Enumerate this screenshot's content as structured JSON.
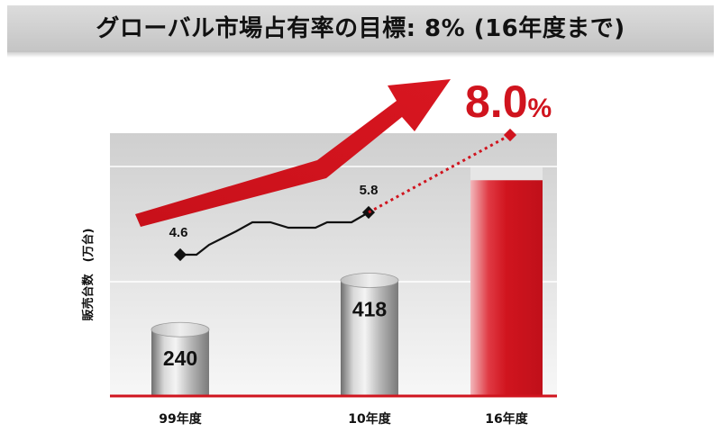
{
  "title": "グローバル市場占有率の目標: 8% (16年度まで)",
  "colors": {
    "accent_red": "#d0141e",
    "dark_line": "#111111",
    "grey_cylinder": "#9a9a9a"
  },
  "chart_data": {
    "type": "bar",
    "title": "グローバル市場占有率の目標: 8% (16年度まで)",
    "categories": [
      "99年度",
      "10年度",
      "16年度"
    ],
    "ylabel": "販売台数　(万台)",
    "ylim": [
      0,
      950
    ],
    "grid": true,
    "series": [
      {
        "values": [
          240,
          418,
          null
        ]
      }
    ],
    "target_bar": {
      "category": "16年度",
      "value": 780,
      "color": "#d0141e"
    },
    "share_line": {
      "unit": "%",
      "points": [
        {
          "label": "4.6",
          "value": 4.6
        },
        {
          "label": "5.8",
          "value": 5.8
        }
      ],
      "target": {
        "label": "8.0",
        "unit": "%",
        "value": 8.0
      }
    }
  }
}
